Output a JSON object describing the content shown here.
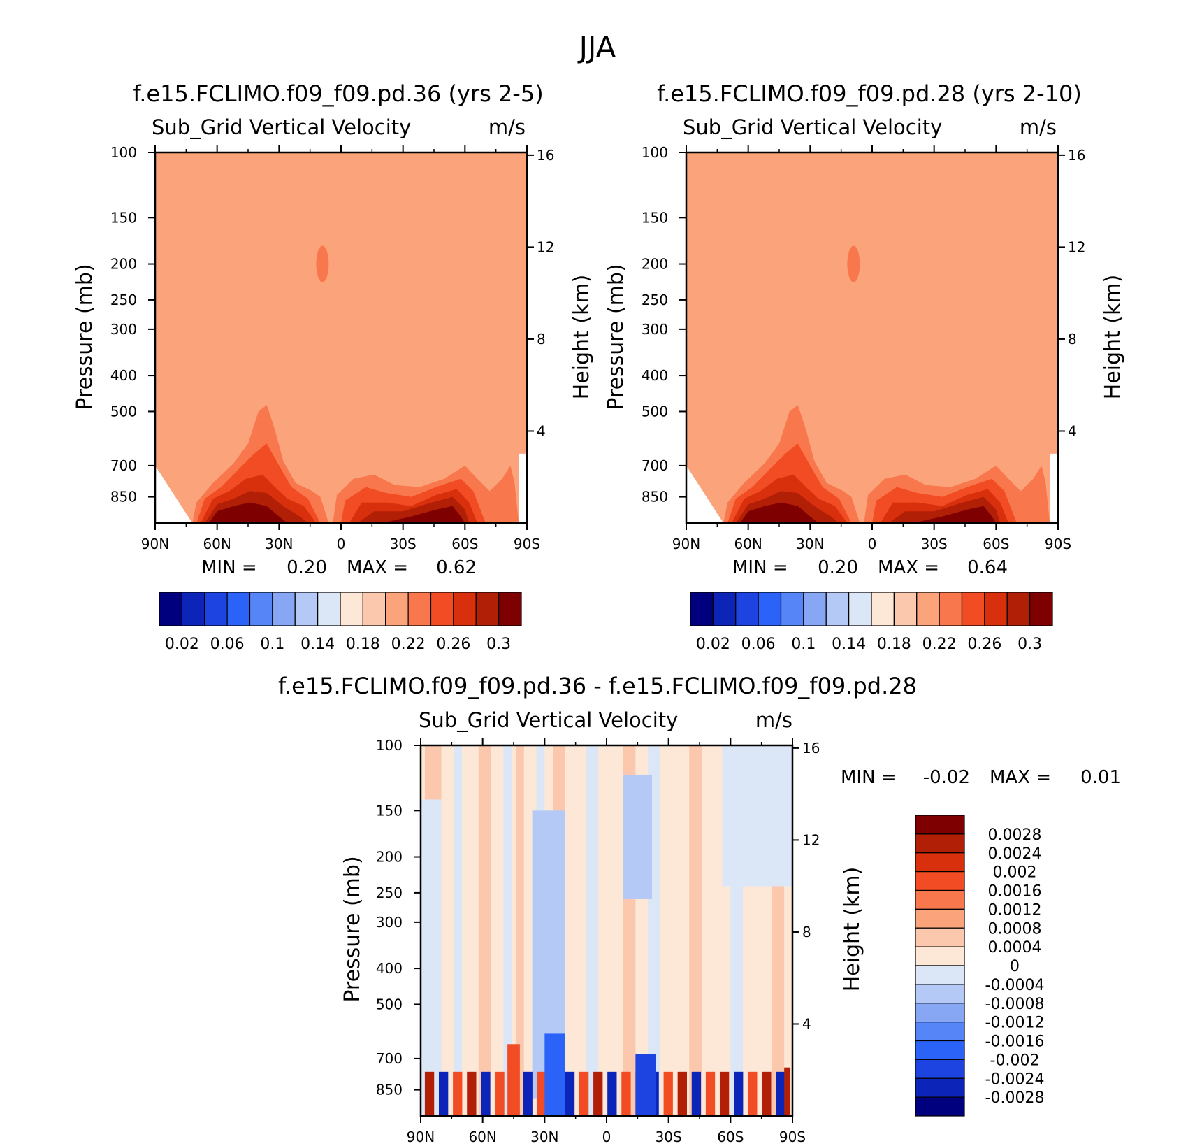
{
  "chart_data": {
    "type": "heatmap",
    "title": "JJA",
    "panels": [
      {
        "id": "p1",
        "case_title": "f.e15.FCLIMO.f09_f09.pd.36 (yrs 2-5)",
        "variable": "Sub_Grid Vertical Velocity",
        "units": "m/s",
        "ylabel": "Pressure (mb)",
        "y2label": "Height (km)",
        "min_label": "MIN =",
        "min_value": "0.20",
        "max_label": "MAX =",
        "max_value": "0.62",
        "colorbar_labels": [
          "0.02",
          "0.06",
          "0.1",
          "0.14",
          "0.18",
          "0.22",
          "0.26",
          "0.3"
        ]
      },
      {
        "id": "p2",
        "case_title": "f.e15.FCLIMO.f09_f09.pd.28 (yrs 2-10)",
        "variable": "Sub_Grid Vertical Velocity",
        "units": "m/s",
        "ylabel": "Pressure (mb)",
        "y2label": "Height (km)",
        "min_label": "MIN =",
        "min_value": "0.20",
        "max_label": "MAX =",
        "max_value": "0.64",
        "colorbar_labels": [
          "0.02",
          "0.06",
          "0.1",
          "0.14",
          "0.18",
          "0.22",
          "0.26",
          "0.3"
        ]
      },
      {
        "id": "p3",
        "case_title": "f.e15.FCLIMO.f09_f09.pd.36 - f.e15.FCLIMO.f09_f09.pd.28",
        "variable": "Sub_Grid Vertical Velocity",
        "units": "m/s",
        "ylabel": "Pressure (mb)",
        "y2label": "Height (km)",
        "min_label": "MIN =",
        "min_value": "-0.02",
        "max_label": "MAX =",
        "max_value": "0.01",
        "colorbar_labels": [
          "0.0028",
          "0.0024",
          "0.002",
          "0.0016",
          "0.0012",
          "0.0008",
          "0.0004",
          "0",
          "-0.0004",
          "-0.0008",
          "-0.0012",
          "-0.0016",
          "-0.002",
          "-0.0024",
          "-0.0028"
        ]
      }
    ],
    "x_ticks": [
      "90N",
      "60N",
      "30N",
      "0",
      "30S",
      "60S",
      "90S"
    ],
    "x_tick_values": [
      90,
      60,
      30,
      0,
      -30,
      -60,
      -90
    ],
    "y_ticks": [
      "100",
      "150",
      "200",
      "250",
      "300",
      "400",
      "500",
      "700",
      "850"
    ],
    "y_tick_values": [
      100,
      150,
      200,
      250,
      300,
      400,
      500,
      700,
      850
    ],
    "y_range": [
      100,
      1000
    ],
    "y2_ticks": [
      "4",
      "8",
      "12",
      "16"
    ],
    "y2_tick_values": [
      4,
      8,
      12,
      16
    ],
    "abs_colors": [
      "#00007f",
      "#0c24b8",
      "#1d44e0",
      "#2b63f8",
      "#5585f6",
      "#87a7f4",
      "#b4c9f5",
      "#dbe7f7",
      "#fde8d8",
      "#fcc8ad",
      "#fba47c",
      "#f8774c",
      "#f14c23",
      "#d82f0c",
      "#b21f07",
      "#7f0000"
    ],
    "diff_colors": [
      "#7f0000",
      "#b21f07",
      "#d82f0c",
      "#f14c23",
      "#f8774c",
      "#fba47c",
      "#fcc8ad",
      "#fde8d8",
      "#dbe7f7",
      "#b4c9f5",
      "#87a7f4",
      "#5585f6",
      "#2b63f8",
      "#1d44e0",
      "#0c24b8",
      "#00007f"
    ]
  }
}
